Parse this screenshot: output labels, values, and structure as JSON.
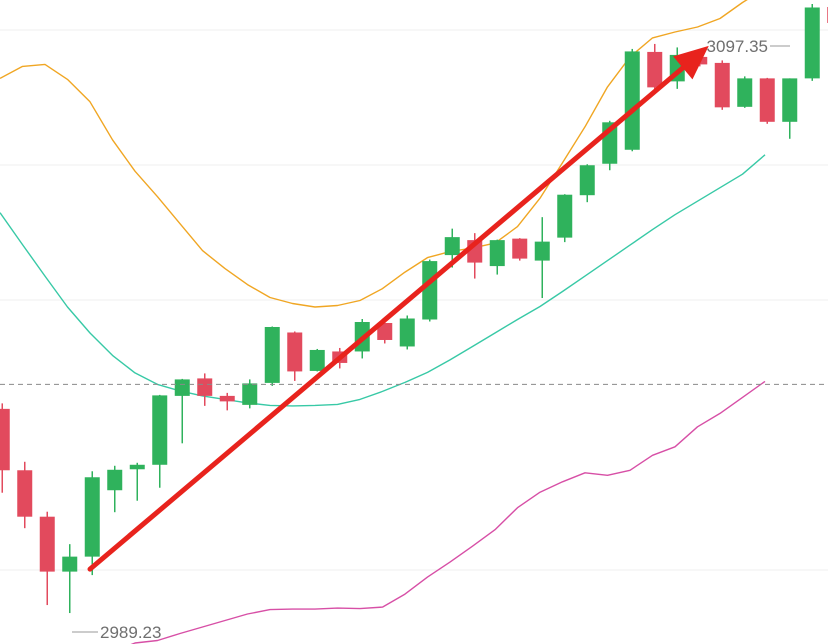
{
  "chart_data": {
    "type": "candlestick",
    "title": "",
    "xlabel": "",
    "ylabel": "",
    "grid": true,
    "ylim": [
      2983,
      3112
    ],
    "reference_line": 3035,
    "colors": {
      "up": "#2fb25c",
      "down": "#e24a5d",
      "upper_band": "#f0a623",
      "middle_band": "#38c9a6",
      "lower_band": "#d74fa6",
      "trend_arrow": "#e8231d"
    },
    "candles": [
      {
        "open": 3030.1,
        "high": 3031.2,
        "low": 3013.3,
        "close": 3017.8
      },
      {
        "open": 3017.8,
        "high": 3019.5,
        "low": 3006.2,
        "close": 3008.5
      },
      {
        "open": 3008.5,
        "high": 3009.5,
        "low": 2990.8,
        "close": 2997.5
      },
      {
        "open": 2997.5,
        "high": 3003.0,
        "low": 2989.2,
        "close": 3000.5
      },
      {
        "open": 3000.5,
        "high": 3017.6,
        "low": 2996.8,
        "close": 3016.4
      },
      {
        "open": 3013.8,
        "high": 3018.7,
        "low": 3009.4,
        "close": 3017.9
      },
      {
        "open": 3018.0,
        "high": 3019.3,
        "low": 3011.7,
        "close": 3018.9
      },
      {
        "open": 3018.9,
        "high": 3032.9,
        "low": 3014.3,
        "close": 3032.8
      },
      {
        "open": 3032.7,
        "high": 3036.1,
        "low": 3023.2,
        "close": 3036.0
      },
      {
        "open": 3036.2,
        "high": 3037.2,
        "low": 3030.7,
        "close": 3032.7
      },
      {
        "open": 3032.7,
        "high": 3033.3,
        "low": 3029.8,
        "close": 3031.6
      },
      {
        "open": 3030.9,
        "high": 3036.0,
        "low": 3030.2,
        "close": 3035.2
      },
      {
        "open": 3035.3,
        "high": 3046.6,
        "low": 3034.7,
        "close": 3046.5
      },
      {
        "open": 3045.4,
        "high": 3045.6,
        "low": 3035.7,
        "close": 3037.6
      },
      {
        "open": 3037.7,
        "high": 3042.1,
        "low": 3037.6,
        "close": 3041.9
      },
      {
        "open": 3041.6,
        "high": 3042.3,
        "low": 3038.2,
        "close": 3039.3
      },
      {
        "open": 3041.6,
        "high": 3048.1,
        "low": 3040.2,
        "close": 3047.5
      },
      {
        "open": 3047.3,
        "high": 3047.9,
        "low": 3043.2,
        "close": 3043.9
      },
      {
        "open": 3042.6,
        "high": 3048.8,
        "low": 3042.0,
        "close": 3048.2
      },
      {
        "open": 3048.0,
        "high": 3060.0,
        "low": 3047.6,
        "close": 3059.7
      },
      {
        "open": 3060.9,
        "high": 3066.2,
        "low": 3058.4,
        "close": 3064.5
      },
      {
        "open": 3063.9,
        "high": 3065.3,
        "low": 3056.2,
        "close": 3059.4
      },
      {
        "open": 3058.7,
        "high": 3064.0,
        "low": 3057.0,
        "close": 3063.9
      },
      {
        "open": 3064.2,
        "high": 3064.3,
        "low": 3059.8,
        "close": 3060.2
      },
      {
        "open": 3059.8,
        "high": 3068.5,
        "low": 3052.3,
        "close": 3063.6
      },
      {
        "open": 3064.4,
        "high": 3073.1,
        "low": 3063.5,
        "close": 3073.0
      },
      {
        "open": 3072.9,
        "high": 3079.1,
        "low": 3071.5,
        "close": 3078.9
      },
      {
        "open": 3079.2,
        "high": 3087.8,
        "low": 3077.9,
        "close": 3087.5
      },
      {
        "open": 3082.0,
        "high": 3102.2,
        "low": 3081.7,
        "close": 3101.7
      },
      {
        "open": 3101.6,
        "high": 3103.2,
        "low": 3094.1,
        "close": 3094.5
      },
      {
        "open": 3095.7,
        "high": 3102.5,
        "low": 3094.2,
        "close": 3101.0
      },
      {
        "open": 3100.6,
        "high": 3101.7,
        "low": 3098.7,
        "close": 3099.1
      },
      {
        "open": 3099.4,
        "high": 3099.9,
        "low": 3090.0,
        "close": 3090.5
      },
      {
        "open": 3090.6,
        "high": 3096.7,
        "low": 3090.4,
        "close": 3096.3
      },
      {
        "open": 3096.3,
        "high": 3096.4,
        "low": 3087.2,
        "close": 3087.6
      },
      {
        "open": 3087.6,
        "high": 3096.3,
        "low": 3084.2,
        "close": 3096.3
      },
      {
        "open": 3096.3,
        "high": 3111.2,
        "low": 3095.8,
        "close": 3110.5
      },
      {
        "open": 3110.6,
        "high": 3111.0,
        "low": 3103.3,
        "close": 3107.4
      }
    ],
    "bands": {
      "upper": [
        3096.3,
        3098.7,
        3099.1,
        3096.1,
        3091.6,
        3084.0,
        3077.7,
        3072.6,
        3067.2,
        3061.8,
        3058.2,
        3055.0,
        3052.4,
        3051.2,
        3050.5,
        3050.8,
        3051.8,
        3054.2,
        3057.5,
        3060.4,
        3061.6,
        3062.3,
        3063.3,
        3066.6,
        3072.3,
        3079.4,
        3086.6,
        3094.6,
        3100.6,
        3104.4,
        3105.6,
        3106.6,
        3108.3,
        3111.5,
        3114.3
      ],
      "middle": [
        3069.4,
        3063.0,
        3056.7,
        3050.5,
        3045.3,
        3040.8,
        3037.3,
        3035.0,
        3033.7,
        3032.7,
        3032.0,
        3031.3,
        3030.8,
        3030.7,
        3030.8,
        3031.0,
        3032.0,
        3033.6,
        3035.4,
        3037.4,
        3039.9,
        3042.6,
        3045.3,
        3048.0,
        3050.6,
        3053.6,
        3056.7,
        3059.8,
        3062.9,
        3066.0,
        3069.0,
        3071.7,
        3074.4,
        3077.1,
        3081.0
      ],
      "lower": [
        2977.7,
        2976.5,
        2976.5,
        2977.2,
        2978.4,
        2981.4,
        2983.2,
        2983.7,
        2985.1,
        2986.4,
        2987.7,
        2989.0,
        2989.9,
        2990.0,
        2990.0,
        2990.2,
        2990.1,
        2990.4,
        2993.0,
        2996.4,
        2999.4,
        3002.6,
        3005.9,
        3010.3,
        3013.4,
        3015.5,
        3017.3,
        3016.8,
        3017.8,
        3020.8,
        3022.5,
        3026.5,
        3029.2,
        3032.4,
        3035.6
      ]
    },
    "annotations": [
      {
        "label": "3097.35",
        "value": 3097.35
      },
      {
        "label": "2989.23",
        "value": 2989.23
      }
    ],
    "trend_arrow": {
      "from_index": 4,
      "from_value": 2998.0,
      "to_index": 31.5,
      "to_value": 3102.8
    }
  }
}
